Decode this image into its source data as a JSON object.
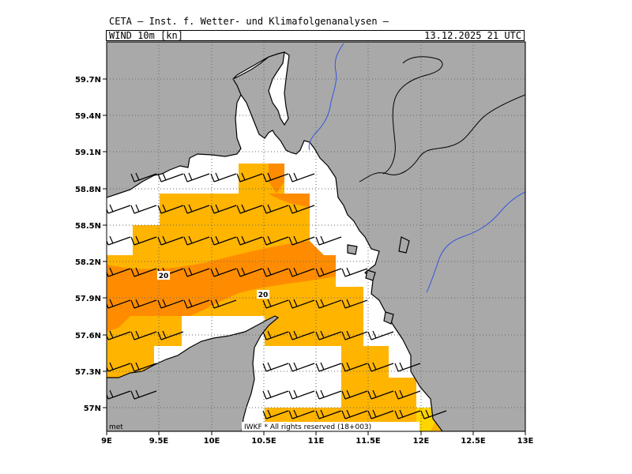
{
  "header": {
    "organization": "CETA — Inst. f. Wetter- und Klimafolgenanalysen —",
    "variable": "WIND_10m_[kn]",
    "datetime": "13.12.2025 21 UTC"
  },
  "axes": {
    "lat_ticks": [
      "59.7N",
      "59.4N",
      "59.1N",
      "58.8N",
      "58.5N",
      "58.2N",
      "57.9N",
      "57.6N",
      "57.3N",
      "57N"
    ],
    "lon_ticks": [
      "9E",
      "9.5E",
      "10E",
      "10.5E",
      "11E",
      "11.5E",
      "12E",
      "12.5E",
      "13E"
    ],
    "lat_range": [
      56.8,
      60.0
    ],
    "lon_range": [
      9.0,
      13.0
    ]
  },
  "colors": {
    "land": "#a9a9a9",
    "sea": "#ffffff",
    "wind_15_20": "#ffb400",
    "wind_20_25": "#ff8c00",
    "wind_25_30": "#ffd500",
    "rivers": "#3355dd"
  },
  "contour_labels": [
    "20",
    "20"
  ],
  "footer": {
    "left": "met",
    "right": "IWKF  * All rights reserved (18+003)"
  },
  "icons": [
    "wind-barb-icon"
  ]
}
